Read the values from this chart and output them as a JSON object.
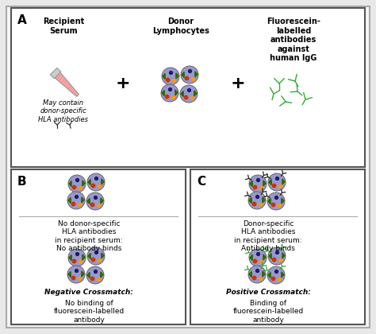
{
  "bg_color": "#e8e8e8",
  "panel_bg": "#ffffff",
  "outer_bg": "#d8d8d8",
  "border_color": "#555555",
  "cell_color": "#9999cc",
  "cell_outline": "#666666",
  "dot_dark": "#1a1a6e",
  "dot_red": "#cc3300",
  "dot_orange": "#ff9900",
  "dot_green_tri": "#336600",
  "antibody_black": "#222222",
  "antibody_green": "#33aa33",
  "tube_fill": "#f4a0a0",
  "tube_outline": "#999999",
  "title_A": "A",
  "title_B": "B",
  "title_C": "C",
  "label_recipient": "Recipient\nSerum",
  "label_donor": "Donor\nLymphocytes",
  "label_fluorescein": "Fluorescein-\nlabelled\nantibodies\nagainst\nhuman IgG",
  "label_may_contain": "May contain\ndonor-specific\nHLA antibodies",
  "text_B_top": "No donor-specific\nHLA antibodies\nin recipient serum:\nNo antibody binds",
  "text_B_bottom_title": "Negative Crossmatch:",
  "text_B_bottom_body": "No binding of\nfluorescein-labelled\nantibody",
  "text_C_top": "Donor-specific\nHLA antibodies\nin recipient serum:\nAntibody binds",
  "text_C_bottom_title": "Positive Crossmatch:",
  "text_C_bottom_body": "Binding of\nfluorescein-labelled\nantibody"
}
